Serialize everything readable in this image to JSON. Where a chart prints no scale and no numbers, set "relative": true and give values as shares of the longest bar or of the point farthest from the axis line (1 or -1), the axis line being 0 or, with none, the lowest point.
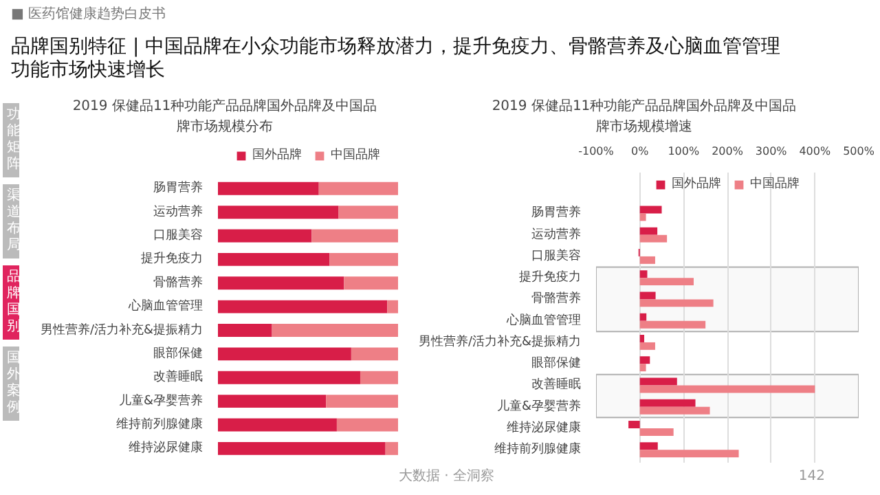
{
  "chart_data": [
    {
      "type": "bar",
      "orientation": "horizontal",
      "stacked": true,
      "relative": true,
      "title": "2019 保健品11种功能产品品牌国外品牌及中国品牌市场规模分布",
      "legend": "top",
      "annotations": [
        "■ 医药馆健康趋势白皮书",
        "品牌国别特征 | 中国品牌在小众功能市场释放潜力，提升免疫力、骨骼营养及心脑血管管理功能市场快速增长",
        "功能矩阵",
        "渠道布局",
        "品牌国别",
        "国外案例",
        "大数据 · 全洞察",
        "142"
      ],
      "categories": [
        "肠胃营养",
        "运动营养",
        "口服美容",
        "提升免疫力",
        "骨骼营养",
        "心脑血管管理",
        "男性营养/活力补充&提振精力",
        "眼部保健",
        "改善睡眠",
        "儿童&孕婴营养",
        "维持前列腺健康",
        "维持泌尿健康"
      ],
      "series": [
        {
          "name": "国外品牌",
          "color": "#d81e48",
          "values": [
            0.56,
            0.67,
            0.52,
            0.62,
            0.7,
            0.94,
            0.3,
            0.74,
            0.79,
            0.6,
            0.66,
            0.93
          ]
        },
        {
          "name": "中国品牌",
          "color": "#ee7f86",
          "values": [
            0.44,
            0.33,
            0.48,
            0.38,
            0.3,
            0.06,
            0.7,
            0.26,
            0.21,
            0.4,
            0.34,
            0.07
          ]
        }
      ]
    },
    {
      "type": "bar",
      "orientation": "horizontal",
      "title": "2019 保健品11种功能产品品牌国外品牌及中国品牌市场规模增速",
      "legend": "top",
      "grid": "x",
      "categories": [
        "肠胃营养",
        "运动营养",
        "口服美容",
        "提升免疫力",
        "骨骼营养",
        "心脑血管管理",
        "男性营养/活力补充&提振精力",
        "眼部保健",
        "改善睡眠",
        "儿童&孕婴营养",
        "维持泌尿健康",
        "维持前列腺健康"
      ],
      "xlim": [
        -100,
        500
      ],
      "xticks": [
        {
          "value": -100,
          "label": "-100%"
        },
        {
          "value": 0,
          "label": "0%"
        },
        {
          "value": 100,
          "label": "100%"
        },
        {
          "value": 200,
          "label": "200%"
        },
        {
          "value": 300,
          "label": "300%"
        },
        {
          "value": 400,
          "label": "400%"
        },
        {
          "value": 500,
          "label": "500%"
        }
      ],
      "bands": [
        {
          "axis": "y",
          "from": "提升免疫力",
          "to": "心脑血管管理",
          "color": "#b0b0b0"
        },
        {
          "axis": "y",
          "from": "改善睡眠",
          "to": "儿童&孕婴营养",
          "color": "#b0b0b0"
        }
      ],
      "series": [
        {
          "name": "国外品牌",
          "color": "#d81e48",
          "values": [
            50,
            40,
            -3,
            17,
            36,
            15,
            10,
            23,
            85,
            127,
            -26,
            41
          ]
        },
        {
          "name": "中国品牌",
          "color": "#ee7f86",
          "values": [
            14,
            62,
            35,
            123,
            168,
            150,
            35,
            14,
            400,
            160,
            77,
            226
          ]
        }
      ]
    }
  ]
}
